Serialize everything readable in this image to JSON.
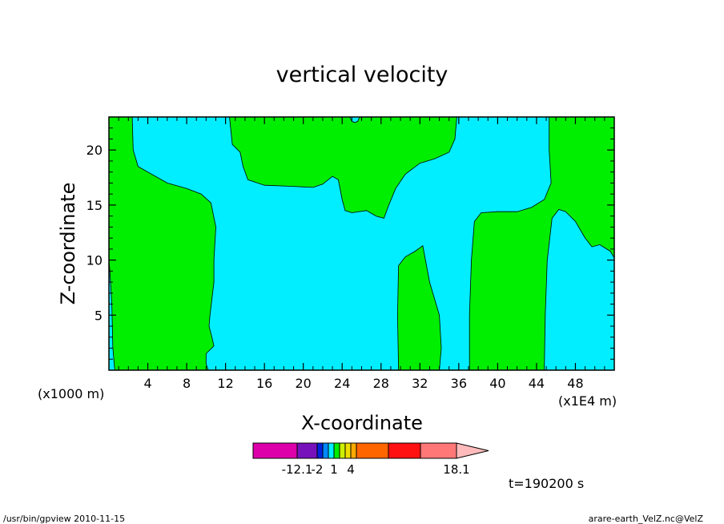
{
  "chart_data": {
    "type": "heatmap",
    "title": "vertical velocity",
    "xlabel": "X-coordinate",
    "ylabel": "Z-coordinate",
    "x_unit_left": "(x1000 m)",
    "x_unit_right": "(x1E4 m)",
    "xlim": [
      0,
      52
    ],
    "ylim": [
      0,
      23
    ],
    "x_ticks": [
      4,
      8,
      12,
      16,
      20,
      24,
      28,
      32,
      36,
      40,
      44,
      48
    ],
    "x_tick_labels": [
      "4",
      "8",
      "12",
      "16",
      "20",
      "24",
      "28",
      "32",
      "36",
      "40",
      "44",
      "48"
    ],
    "y_ticks": [
      5,
      10,
      15,
      20
    ],
    "y_tick_labels": [
      "5",
      "10",
      "15",
      "20"
    ],
    "colors": {
      "background_band": "#00eeff",
      "positive_band": "#00ee00",
      "contour": "#000000"
    },
    "regions": [
      {
        "name": "left-updraft",
        "points": [
          [
            0,
            23
          ],
          [
            2.4,
            23
          ],
          [
            2.5,
            20
          ],
          [
            3,
            18.5
          ],
          [
            6,
            17
          ],
          [
            8,
            16.5
          ],
          [
            9.5,
            16
          ],
          [
            10.5,
            15.2
          ],
          [
            11,
            13
          ],
          [
            10.8,
            10
          ],
          [
            10.8,
            8
          ],
          [
            10.4,
            5
          ],
          [
            10.3,
            4
          ],
          [
            10.6,
            3
          ],
          [
            10.8,
            2.2
          ],
          [
            10,
            1.5
          ],
          [
            10,
            0.6
          ],
          [
            10.2,
            0
          ],
          [
            0.6,
            0
          ],
          [
            0.4,
            2
          ],
          [
            0.3,
            6
          ],
          [
            0.1,
            9
          ],
          [
            0,
            10
          ]
        ]
      },
      {
        "name": "upper-mid-updraft",
        "points": [
          [
            12.4,
            23
          ],
          [
            12.7,
            20.5
          ],
          [
            13.5,
            19.8
          ],
          [
            13.8,
            18.5
          ],
          [
            14.3,
            17.3
          ],
          [
            16,
            16.8
          ],
          [
            19,
            16.7
          ],
          [
            21,
            16.6
          ],
          [
            22,
            16.9
          ],
          [
            23,
            17.6
          ],
          [
            23.6,
            17.3
          ],
          [
            24,
            15.5
          ],
          [
            24.3,
            14.5
          ],
          [
            25,
            14.3
          ],
          [
            26.5,
            14.5
          ],
          [
            27.5,
            14
          ],
          [
            28.3,
            13.8
          ],
          [
            28.8,
            15
          ],
          [
            29.5,
            16.5
          ],
          [
            30.5,
            17.8
          ],
          [
            32,
            18.8
          ],
          [
            33.5,
            19.2
          ],
          [
            35,
            19.8
          ],
          [
            35.6,
            21
          ],
          [
            35.8,
            23
          ],
          [
            25.8,
            23
          ],
          [
            25.6,
            22.6
          ],
          [
            25.3,
            22.5
          ],
          [
            25,
            22.6
          ],
          [
            24.8,
            23
          ]
        ]
      },
      {
        "name": "lower-mid-updraft",
        "points": [
          [
            29.8,
            0
          ],
          [
            29.7,
            5
          ],
          [
            29.8,
            9.5
          ],
          [
            30.5,
            10.3
          ],
          [
            31.5,
            10.8
          ],
          [
            32.3,
            11.3
          ],
          [
            33,
            8
          ],
          [
            34,
            5
          ],
          [
            34.2,
            2
          ],
          [
            34,
            0
          ]
        ]
      },
      {
        "name": "right-updraft",
        "points": [
          [
            37.1,
            0
          ],
          [
            37.1,
            5
          ],
          [
            37.3,
            10
          ],
          [
            37.6,
            13.5
          ],
          [
            38.3,
            14.3
          ],
          [
            40,
            14.4
          ],
          [
            42,
            14.4
          ],
          [
            43.5,
            14.8
          ],
          [
            44.8,
            15.5
          ],
          [
            45.5,
            17
          ],
          [
            45.3,
            20
          ],
          [
            45.3,
            23
          ],
          [
            52,
            23
          ],
          [
            52,
            10.2
          ],
          [
            51.6,
            10.8
          ],
          [
            50.5,
            11.4
          ],
          [
            49.7,
            11.2
          ],
          [
            49,
            12
          ],
          [
            48,
            13.5
          ],
          [
            47,
            14.4
          ],
          [
            46.3,
            14.6
          ],
          [
            45.6,
            13.8
          ],
          [
            45.1,
            10
          ],
          [
            44.9,
            5
          ],
          [
            44.8,
            0
          ]
        ]
      }
    ],
    "colorbar": {
      "colors": [
        "#dd00aa",
        "#7711bb",
        "#0022dd",
        "#0088ff",
        "#00eeff",
        "#00ee00",
        "#ccee00",
        "#eedd00",
        "#ffaa00",
        "#ff6600",
        "#ff1111",
        "#ff7777",
        "#ffbbbb"
      ],
      "widths": [
        55,
        25,
        7,
        7,
        7,
        7,
        7,
        7,
        7,
        40,
        40,
        45,
        40
      ],
      "tick_labels": [
        {
          "text": "-12.1",
          "at_boundary": 1
        },
        {
          "text": "-2",
          "at_boundary": 2
        },
        {
          "text": "1",
          "at_boundary": 5
        },
        {
          "text": "4",
          "at_boundary": 8
        },
        {
          "text": "18.1",
          "at_boundary": 12
        }
      ]
    },
    "time_label": "t=190200 s"
  },
  "footer": {
    "left": "/usr/bin/gpview  2010-11-15",
    "right": "arare-earth_VelZ.nc@VelZ"
  }
}
